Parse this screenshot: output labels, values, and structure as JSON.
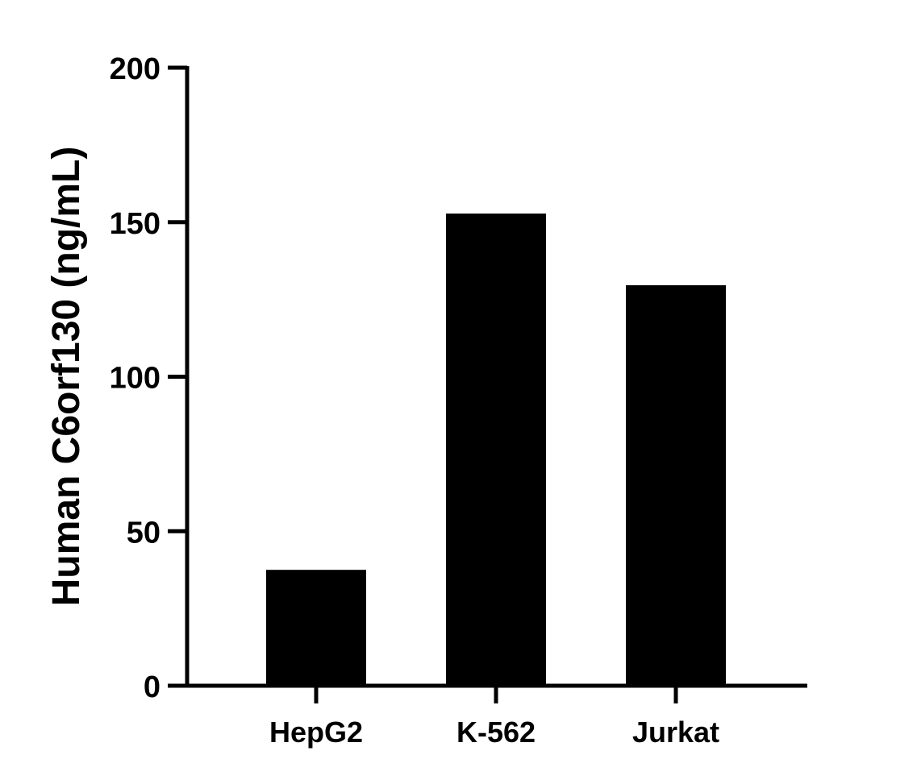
{
  "chart_data": {
    "type": "bar",
    "title": "",
    "xlabel": "",
    "ylabel": "Human C6orf130 (ng/mL)",
    "categories": [
      "HepG2",
      "K-562",
      "Jurkat"
    ],
    "values": [
      37.5,
      152.8,
      129.6
    ],
    "ylim": [
      0,
      200
    ],
    "yticks": [
      "0",
      "50",
      "100",
      "150",
      "200"
    ],
    "grid": false,
    "bar_color": "#000000"
  }
}
